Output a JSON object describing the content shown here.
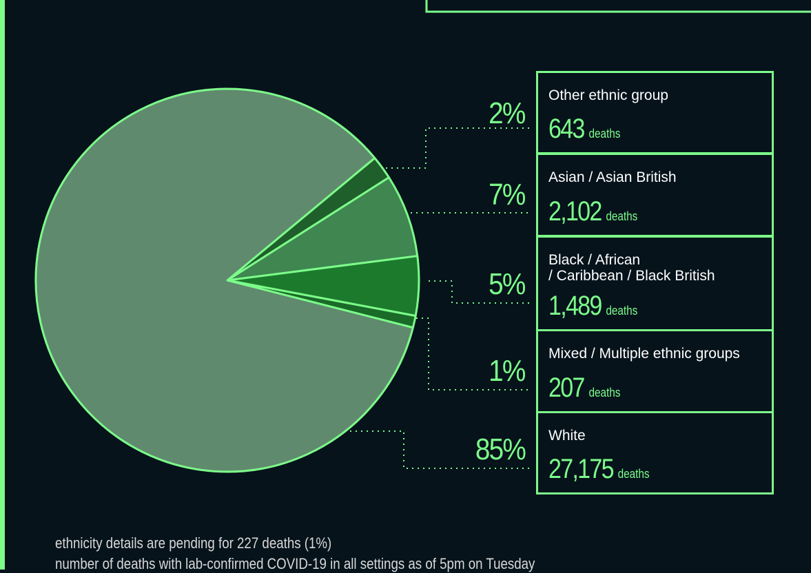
{
  "chart_data": {
    "type": "pie",
    "categories": [
      "Other ethnic group",
      "Asian / Asian British",
      "Black / African\n/ Caribbean / Black British",
      "Mixed / Multiple ethnic groups",
      "White"
    ],
    "values": [
      2,
      7,
      5,
      1,
      85
    ],
    "value_labels": [
      "2%",
      "7%",
      "5%",
      "1%",
      "85%"
    ],
    "colors": [
      "#1f5f2b",
      "#3f8651",
      "#1c7a2d",
      "#1a6a28",
      "#5f8a6e"
    ],
    "deaths": [
      643,
      2102,
      1489,
      207,
      27175
    ],
    "deaths_labels": [
      "643",
      "2,102",
      "1,489",
      "207",
      "27,175"
    ],
    "deaths_unit": "deaths",
    "notes": [
      "ethnicity details are pending for 227 deaths (1%)",
      "number of deaths with lab-confirmed COVID-19 in all settings as of 5pm on Tuesday"
    ]
  }
}
